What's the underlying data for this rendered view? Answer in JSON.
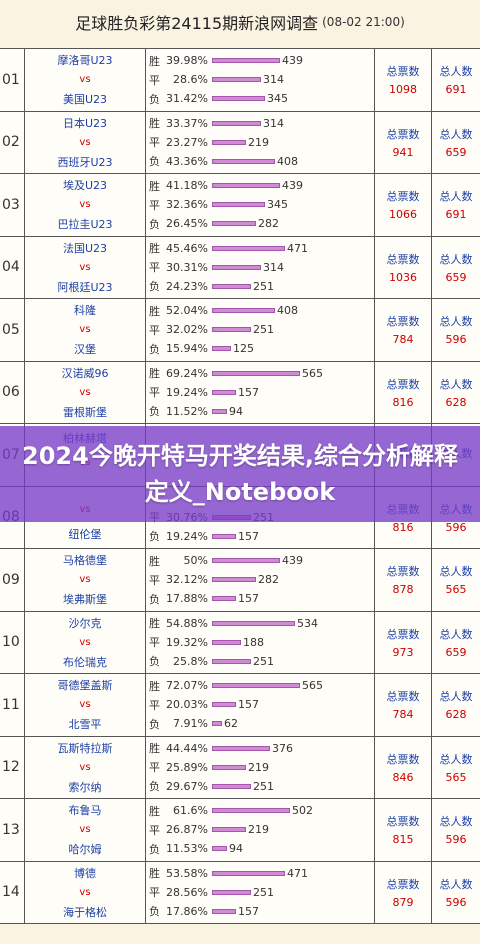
{
  "header": {
    "title": "足球胜负彩第24115期新浪网调查",
    "timestamp": "(08-02 21:00)"
  },
  "overlay_text": "2024今晚开特马开奖结果,综合分析解释定义_Notebook",
  "labels": {
    "win": "胜",
    "draw": "平",
    "loss": "负",
    "vs": "vs",
    "total_votes": "总票数",
    "total_people": "总人数"
  },
  "matches": [
    {
      "no": "01",
      "home": "摩洛哥U23",
      "away": "美国U23",
      "win_pct": "39.98%",
      "win": 439,
      "draw_pct": "28.6%",
      "draw": 314,
      "loss_pct": "31.42%",
      "loss": 345,
      "votes": "1098",
      "people": "691"
    },
    {
      "no": "02",
      "home": "日本U23",
      "away": "西班牙U23",
      "win_pct": "33.37%",
      "win": 314,
      "draw_pct": "23.27%",
      "draw": 219,
      "loss_pct": "43.36%",
      "loss": 408,
      "votes": "941",
      "people": "659"
    },
    {
      "no": "03",
      "home": "埃及U23",
      "away": "巴拉圭U23",
      "win_pct": "41.18%",
      "win": 439,
      "draw_pct": "32.36%",
      "draw": 345,
      "loss_pct": "26.45%",
      "loss": 282,
      "votes": "1066",
      "people": "691"
    },
    {
      "no": "04",
      "home": "法国U23",
      "away": "阿根廷U23",
      "win_pct": "45.46%",
      "win": 471,
      "draw_pct": "30.31%",
      "draw": 314,
      "loss_pct": "24.23%",
      "loss": 251,
      "votes": "1036",
      "people": "659"
    },
    {
      "no": "05",
      "home": "科隆",
      "away": "汉堡",
      "win_pct": "52.04%",
      "win": 408,
      "draw_pct": "32.02%",
      "draw": 251,
      "loss_pct": "15.94%",
      "loss": 125,
      "votes": "784",
      "people": "596"
    },
    {
      "no": "06",
      "home": "汉诺威96",
      "away": "雷根斯堡",
      "win_pct": "69.24%",
      "win": 565,
      "draw_pct": "19.24%",
      "draw": 157,
      "loss_pct": "11.52%",
      "loss": 94,
      "votes": "816",
      "people": "628"
    },
    {
      "no": "07",
      "home": "柏林赫塔",
      "away": "",
      "win_pct": "",
      "win": null,
      "draw_pct": "",
      "draw": null,
      "loss_pct": "",
      "loss": null,
      "votes": "",
      "people": ""
    },
    {
      "no": "08",
      "home": "",
      "away": "纽伦堡",
      "win_pct": "",
      "win": null,
      "draw_pct": "30.76%",
      "draw": 251,
      "loss_pct": "19.24%",
      "loss": 157,
      "votes": "816",
      "people": "596"
    },
    {
      "no": "09",
      "home": "马格德堡",
      "away": "埃弗斯堡",
      "win_pct": "50%",
      "win": 439,
      "draw_pct": "32.12%",
      "draw": 282,
      "loss_pct": "17.88%",
      "loss": 157,
      "votes": "878",
      "people": "565"
    },
    {
      "no": "10",
      "home": "沙尔克",
      "away": "布伦瑞克",
      "win_pct": "54.88%",
      "win": 534,
      "draw_pct": "19.32%",
      "draw": 188,
      "loss_pct": "25.8%",
      "loss": 251,
      "votes": "973",
      "people": "659"
    },
    {
      "no": "11",
      "home": "哥德堡盖斯",
      "away": "北雪平",
      "win_pct": "72.07%",
      "win": 565,
      "draw_pct": "20.03%",
      "draw": 157,
      "loss_pct": "7.91%",
      "loss": 62,
      "votes": "784",
      "people": "628"
    },
    {
      "no": "12",
      "home": "瓦斯特拉斯",
      "away": "索尔纳",
      "win_pct": "44.44%",
      "win": 376,
      "draw_pct": "25.89%",
      "draw": 219,
      "loss_pct": "29.67%",
      "loss": 251,
      "votes": "846",
      "people": "565"
    },
    {
      "no": "13",
      "home": "布鲁马",
      "away": "哈尔姆",
      "win_pct": "61.6%",
      "win": 502,
      "draw_pct": "26.87%",
      "draw": 219,
      "loss_pct": "11.53%",
      "loss": 94,
      "votes": "815",
      "people": "596"
    },
    {
      "no": "14",
      "home": "博德",
      "away": "海于格松",
      "win_pct": "53.58%",
      "win": 471,
      "draw_pct": "28.56%",
      "draw": 251,
      "loss_pct": "17.86%",
      "loss": 157,
      "votes": "879",
      "people": "596"
    }
  ]
}
